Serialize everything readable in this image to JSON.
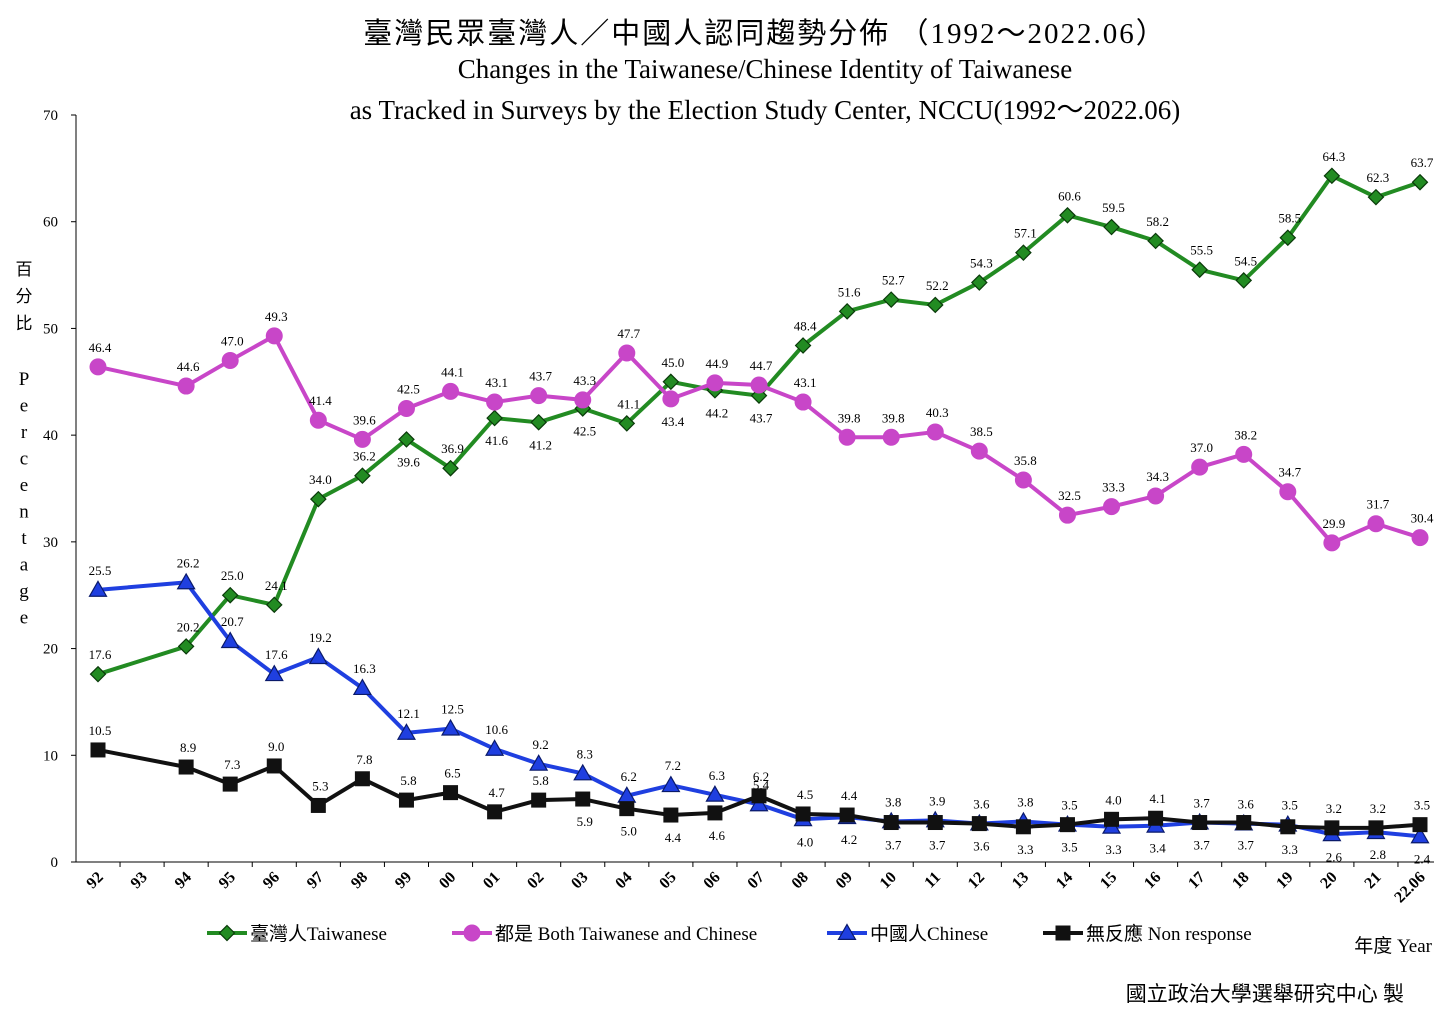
{
  "title_zh": "臺灣民眾臺灣人／中國人認同趨勢分佈 （1992～2022.06）",
  "title_en_line1": "Changes in the Taiwanese/Chinese Identity of Taiwanese",
  "title_en_line2": "as Tracked in Surveys by the Election Study Center, NCCU(1992～2022.06)",
  "credit": "國立政治大學選舉研究中心 製",
  "chart_data": {
    "type": "line",
    "ylabel_zh": [
      "百",
      "分",
      "比"
    ],
    "ylabel_en": [
      "P",
      "e",
      "r",
      "c",
      "e",
      "n",
      "t",
      "a",
      "g",
      "e"
    ],
    "xlabel": "年度 Year",
    "ylim": [
      0,
      70
    ],
    "yticks": [
      0,
      10,
      20,
      30,
      40,
      50,
      60,
      70
    ],
    "grid": false,
    "legend_position": "bottom",
    "categories": [
      "92",
      "93",
      "94",
      "95",
      "96",
      "97",
      "98",
      "99",
      "00",
      "01",
      "02",
      "03",
      "04",
      "05",
      "06",
      "07",
      "08",
      "09",
      "10",
      "11",
      "12",
      "13",
      "14",
      "15",
      "16",
      "17",
      "18",
      "19",
      "20",
      "21",
      "22.06"
    ],
    "series": [
      {
        "name": "臺灣人Taiwanese",
        "color": "#228b22",
        "marker": "diamond",
        "values": [
          17.6,
          null,
          20.2,
          25.0,
          24.1,
          34.0,
          36.2,
          39.6,
          36.9,
          41.6,
          41.2,
          42.5,
          41.1,
          45.0,
          44.2,
          43.7,
          48.4,
          51.6,
          52.7,
          52.2,
          54.3,
          57.1,
          60.6,
          59.5,
          58.2,
          55.5,
          54.5,
          58.5,
          64.3,
          62.3,
          63.7
        ]
      },
      {
        "name": "都是 Both Taiwanese and Chinese",
        "color": "#c846c8",
        "marker": "circle",
        "values": [
          46.4,
          null,
          44.6,
          47.0,
          49.3,
          41.4,
          39.6,
          42.5,
          44.1,
          43.1,
          43.7,
          43.3,
          47.7,
          43.4,
          44.9,
          44.7,
          43.1,
          39.8,
          39.8,
          40.3,
          38.5,
          35.8,
          32.5,
          33.3,
          34.3,
          37.0,
          38.2,
          34.7,
          29.9,
          31.7,
          30.4
        ]
      },
      {
        "name": "中國人Chinese",
        "color": "#1f3fe0",
        "marker": "triangle",
        "values": [
          25.5,
          null,
          26.2,
          20.7,
          17.6,
          19.2,
          16.3,
          12.1,
          12.5,
          10.6,
          9.2,
          8.3,
          6.2,
          7.2,
          6.3,
          5.4,
          4.0,
          4.2,
          3.8,
          3.9,
          3.6,
          3.8,
          3.5,
          3.3,
          3.4,
          3.7,
          3.6,
          3.5,
          2.6,
          2.8,
          2.4
        ]
      },
      {
        "name": "無反應 Non response",
        "color": "#111111",
        "marker": "square",
        "values": [
          10.5,
          null,
          8.9,
          7.3,
          9.0,
          5.3,
          7.8,
          5.8,
          6.5,
          4.7,
          5.8,
          5.9,
          5.0,
          4.4,
          4.6,
          6.2,
          4.5,
          4.4,
          3.7,
          3.7,
          3.6,
          3.3,
          3.5,
          4.0,
          4.1,
          3.7,
          3.7,
          3.3,
          3.2,
          3.2,
          3.5
        ]
      }
    ],
    "data_label_placement": {
      "臺灣人Taiwanese": [
        "above",
        null,
        "above",
        "above",
        "above",
        "above",
        "above",
        "below",
        "above",
        "below",
        "below",
        "below",
        "above",
        "above",
        "below",
        "below",
        "above",
        "above",
        "above",
        "above",
        "above",
        "above",
        "above",
        "above",
        "above",
        "above",
        "above",
        "above",
        "above",
        "above",
        "above"
      ],
      "都是 Both Taiwanese and Chinese": [
        "above",
        null,
        "above",
        "above",
        "above",
        "above",
        "above",
        "above",
        "above",
        "above",
        "above",
        "above",
        "above",
        "below",
        "above",
        "above",
        "above",
        "above",
        "above",
        "above",
        "above",
        "above",
        "above",
        "above",
        "above",
        "above",
        "above",
        "above",
        "above",
        "above",
        "above"
      ],
      "中國人Chinese": [
        "above",
        null,
        "above",
        "above",
        "above",
        "above",
        "above",
        "above",
        "above",
        "above",
        "above",
        "above",
        "above",
        "above",
        "above",
        "above",
        "below",
        "below",
        "above",
        "above",
        "above",
        "above",
        "above",
        "below",
        "below",
        "above",
        "above",
        "above",
        "below",
        "below",
        "below"
      ],
      "無反應 Non response": [
        "above",
        null,
        "above",
        "above",
        "above",
        "above",
        "above",
        "above",
        "above",
        "above",
        "above",
        "below",
        "below",
        "below",
        "below",
        "above",
        "above",
        "above",
        "below",
        "below",
        "below",
        "below",
        "below",
        "above",
        "above",
        "below",
        "below",
        "below",
        "above",
        "above",
        "above"
      ]
    }
  }
}
